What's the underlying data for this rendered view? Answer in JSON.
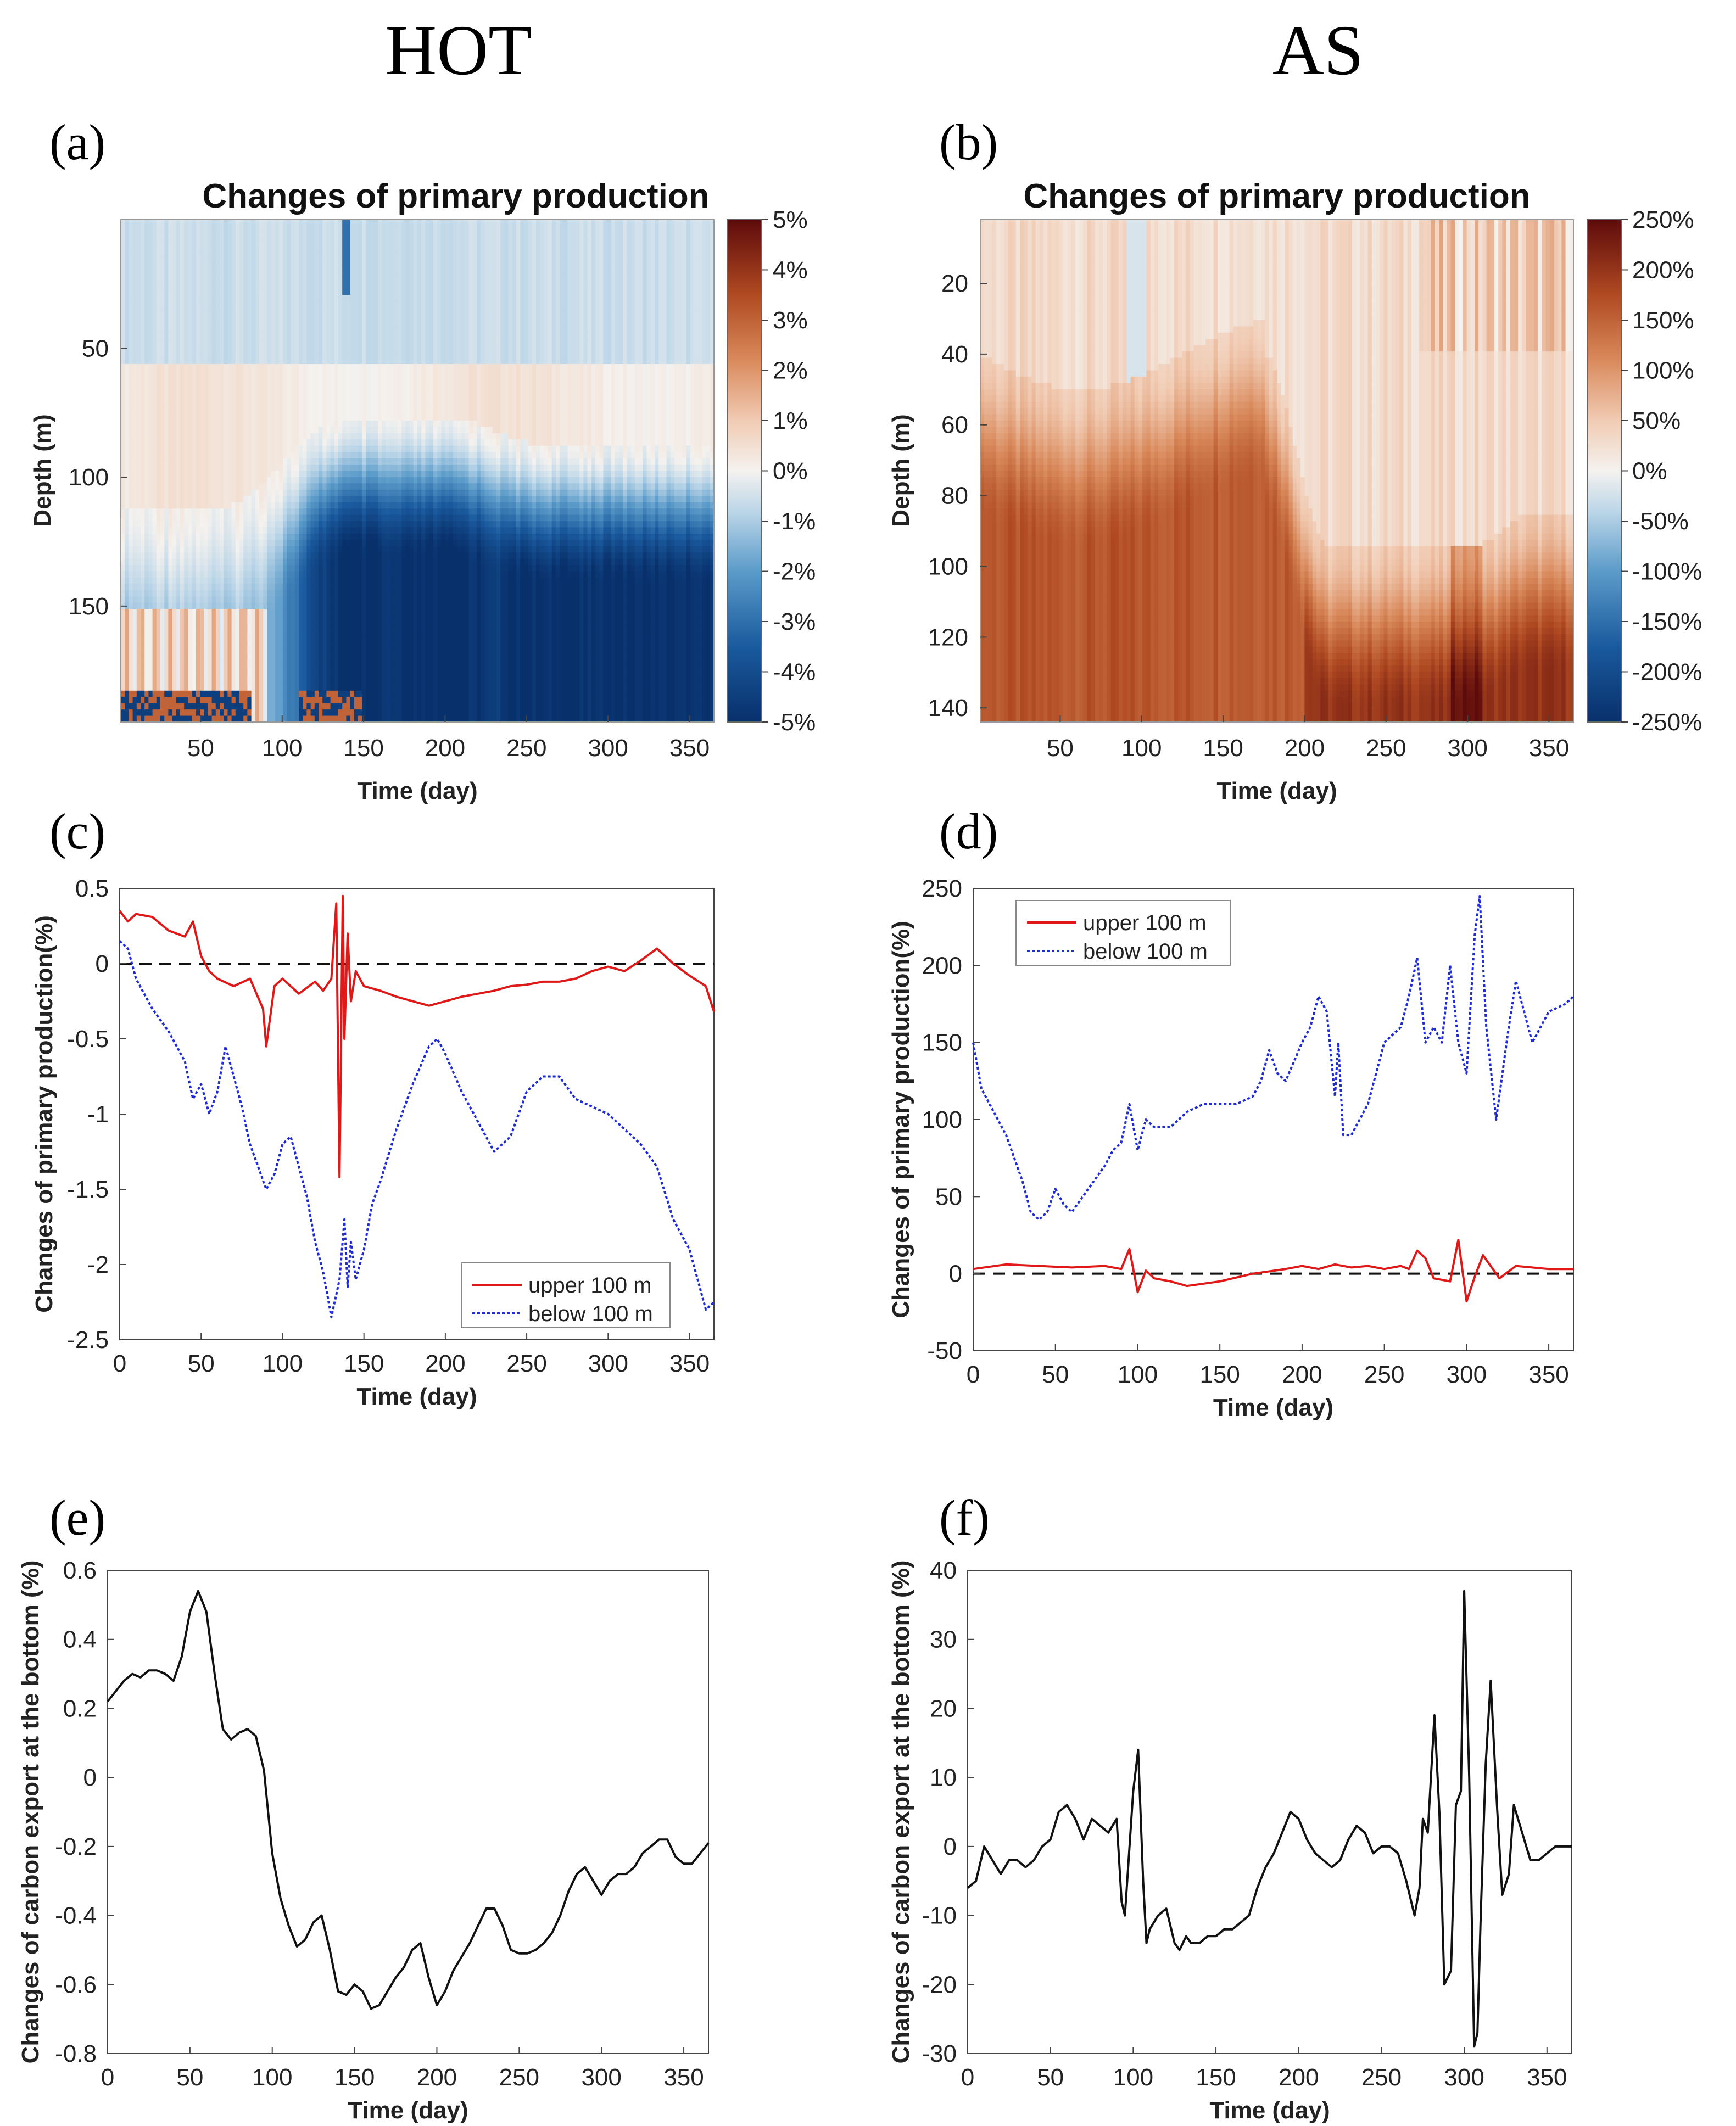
{
  "headers": {
    "left": "HOT",
    "right": "AS"
  },
  "panel_labels": {
    "a": "(a)",
    "b": "(b)",
    "c": "(c)",
    "d": "(d)",
    "e": "(e)",
    "f": "(f)"
  },
  "colors": {
    "red_line": "#e01818",
    "blue_line": "#1f2bd6",
    "black_line": "#111111",
    "neg_end": "#08306b",
    "zero": "#f5f3f1",
    "pos_end": "#6a0b0b"
  },
  "chart_data": [
    {
      "id": "a",
      "type": "heatmap",
      "title": "Changes of primary production",
      "xlabel": "Time (day)",
      "ylabel": "Depth (m)",
      "x_ticks": [
        "50",
        "100",
        "150",
        "200",
        "250",
        "300",
        "350"
      ],
      "y_ticks": [
        "50",
        "100",
        "150"
      ],
      "xlim": [
        1,
        365
      ],
      "ylim": [
        0,
        195
      ],
      "colorbar": {
        "min": -5,
        "max": 5,
        "ticks": [
          "5%",
          "4%",
          "3%",
          "2%",
          "1%",
          "0%",
          "-1%",
          "-2%",
          "-3%",
          "-4%",
          "-5%"
        ],
        "colormap": "blue-white-red"
      }
    },
    {
      "id": "b",
      "type": "heatmap",
      "title": "Changes of primary production",
      "xlabel": "Time (day)",
      "ylabel": "Depth (m)",
      "x_ticks": [
        "50",
        "100",
        "150",
        "200",
        "250",
        "300",
        "350"
      ],
      "y_ticks": [
        "20",
        "40",
        "60",
        "80",
        "100",
        "120",
        "140"
      ],
      "xlim": [
        1,
        365
      ],
      "ylim": [
        2,
        144
      ],
      "colorbar": {
        "min": -250,
        "max": 250,
        "ticks": [
          "250%",
          "200%",
          "150%",
          "100%",
          "50%",
          "0%",
          "-50%",
          "-100%",
          "-150%",
          "-200%",
          "-250%"
        ],
        "colormap": "blue-white-red"
      }
    },
    {
      "id": "c",
      "type": "line",
      "xlabel": "Time (day)",
      "ylabel": "Changes of primary production(%)",
      "xlim": [
        0,
        365
      ],
      "ylim": [
        -2.5,
        0.5
      ],
      "x_ticks": [
        "0",
        "50",
        "100",
        "150",
        "200",
        "250",
        "300",
        "350"
      ],
      "y_ticks": [
        "0.5",
        "0",
        "-0.5",
        "-1",
        "-1.5",
        "-2",
        "-2.5"
      ],
      "legend_position": "bottom-right",
      "series": [
        {
          "name": "upper 100 m",
          "style": "solid",
          "color": "#e01818",
          "x": [
            0,
            5,
            10,
            20,
            30,
            40,
            45,
            50,
            55,
            60,
            70,
            80,
            88,
            90,
            95,
            100,
            110,
            120,
            125,
            130,
            133,
            135,
            137,
            138,
            140,
            142,
            145,
            150,
            160,
            170,
            180,
            190,
            200,
            210,
            220,
            230,
            240,
            250,
            260,
            270,
            280,
            290,
            300,
            310,
            320,
            330,
            340,
            350,
            360,
            365
          ],
          "y": [
            0.35,
            0.28,
            0.33,
            0.31,
            0.22,
            0.18,
            0.28,
            0.05,
            -0.05,
            -0.1,
            -0.15,
            -0.1,
            -0.3,
            -0.55,
            -0.15,
            -0.1,
            -0.2,
            -0.12,
            -0.18,
            -0.1,
            0.4,
            -1.42,
            0.45,
            -0.5,
            0.2,
            -0.25,
            -0.05,
            -0.15,
            -0.18,
            -0.22,
            -0.25,
            -0.28,
            -0.25,
            -0.22,
            -0.2,
            -0.18,
            -0.15,
            -0.14,
            -0.12,
            -0.12,
            -0.1,
            -0.05,
            -0.02,
            -0.05,
            0.02,
            0.1,
            0.0,
            -0.08,
            -0.15,
            -0.32
          ]
        },
        {
          "name": "below 100 m",
          "style": "dotted",
          "color": "#1f2bd6",
          "x": [
            0,
            5,
            10,
            20,
            30,
            40,
            45,
            50,
            55,
            60,
            65,
            70,
            75,
            80,
            90,
            95,
            100,
            105,
            110,
            115,
            120,
            125,
            130,
            135,
            138,
            140,
            142,
            145,
            150,
            155,
            160,
            170,
            180,
            190,
            195,
            200,
            210,
            220,
            230,
            240,
            250,
            260,
            270,
            280,
            290,
            300,
            310,
            320,
            330,
            340,
            350,
            360,
            365
          ],
          "y": [
            0.15,
            0.1,
            -0.1,
            -0.3,
            -0.45,
            -0.65,
            -0.9,
            -0.8,
            -1.0,
            -0.85,
            -0.55,
            -0.75,
            -0.95,
            -1.2,
            -1.5,
            -1.4,
            -1.2,
            -1.15,
            -1.35,
            -1.55,
            -1.85,
            -2.05,
            -2.35,
            -2.1,
            -1.7,
            -2.15,
            -1.85,
            -2.1,
            -1.9,
            -1.6,
            -1.45,
            -1.1,
            -0.8,
            -0.55,
            -0.5,
            -0.6,
            -0.85,
            -1.05,
            -1.25,
            -1.15,
            -0.85,
            -0.75,
            -0.75,
            -0.9,
            -0.95,
            -1.0,
            -1.1,
            -1.2,
            -1.35,
            -1.7,
            -1.9,
            -2.3,
            -2.25
          ]
        }
      ]
    },
    {
      "id": "d",
      "type": "line",
      "xlabel": "Time (day)",
      "ylabel": "Changes of primary production(%)",
      "xlim": [
        0,
        365
      ],
      "ylim": [
        -50,
        250
      ],
      "x_ticks": [
        "0",
        "50",
        "100",
        "150",
        "200",
        "250",
        "300",
        "350"
      ],
      "y_ticks": [
        "250",
        "200",
        "150",
        "100",
        "50",
        "0",
        "-50"
      ],
      "legend_position": "top-left",
      "series": [
        {
          "name": "upper 100 m",
          "style": "solid",
          "color": "#e01818",
          "x": [
            0,
            20,
            40,
            60,
            80,
            90,
            95,
            100,
            105,
            110,
            120,
            130,
            150,
            170,
            190,
            200,
            210,
            220,
            230,
            240,
            250,
            260,
            265,
            270,
            275,
            280,
            290,
            295,
            300,
            305,
            310,
            320,
            330,
            340,
            350,
            365
          ],
          "y": [
            3,
            6,
            5,
            4,
            5,
            3,
            16,
            -12,
            2,
            -3,
            -5,
            -8,
            -5,
            0,
            3,
            5,
            3,
            6,
            4,
            5,
            3,
            5,
            3,
            15,
            10,
            -3,
            -5,
            22,
            -18,
            -2,
            12,
            -3,
            5,
            4,
            3,
            3
          ]
        },
        {
          "name": "below 100 m",
          "style": "dotted",
          "color": "#1f2bd6",
          "x": [
            0,
            5,
            10,
            20,
            30,
            35,
            40,
            45,
            50,
            55,
            60,
            70,
            80,
            85,
            90,
            95,
            100,
            105,
            110,
            120,
            130,
            140,
            150,
            160,
            170,
            175,
            180,
            185,
            190,
            200,
            205,
            210,
            215,
            220,
            222,
            225,
            230,
            240,
            250,
            260,
            265,
            270,
            275,
            280,
            285,
            290,
            295,
            300,
            305,
            308,
            312,
            318,
            325,
            330,
            340,
            350,
            360,
            365
          ],
          "y": [
            150,
            120,
            110,
            90,
            60,
            40,
            35,
            40,
            55,
            45,
            40,
            55,
            70,
            80,
            85,
            110,
            80,
            100,
            95,
            95,
            105,
            110,
            110,
            110,
            115,
            125,
            145,
            130,
            125,
            150,
            160,
            180,
            170,
            115,
            150,
            90,
            90,
            110,
            150,
            160,
            180,
            205,
            150,
            160,
            150,
            200,
            150,
            130,
            220,
            245,
            160,
            100,
            155,
            190,
            150,
            170,
            175,
            180
          ]
        }
      ]
    },
    {
      "id": "e",
      "type": "line",
      "xlabel": "Time (day)",
      "ylabel": "Changes of carbon export at the bottom (%)",
      "xlim": [
        0,
        365
      ],
      "ylim": [
        -0.8,
        0.6
      ],
      "x_ticks": [
        "0",
        "50",
        "100",
        "150",
        "200",
        "250",
        "300",
        "350"
      ],
      "y_ticks": [
        "0.6",
        "0.4",
        "0.2",
        "0",
        "-0.2",
        "-0.4",
        "-0.6",
        "-0.8"
      ],
      "series": [
        {
          "name": "",
          "style": "solid",
          "color": "#111111",
          "x": [
            0,
            5,
            10,
            15,
            20,
            25,
            30,
            35,
            40,
            45,
            50,
            55,
            60,
            65,
            70,
            75,
            80,
            85,
            90,
            95,
            100,
            105,
            110,
            115,
            120,
            125,
            130,
            135,
            140,
            145,
            150,
            155,
            160,
            165,
            170,
            175,
            180,
            185,
            190,
            195,
            200,
            205,
            210,
            215,
            220,
            225,
            230,
            235,
            240,
            245,
            250,
            255,
            260,
            265,
            270,
            275,
            280,
            285,
            290,
            295,
            300,
            305,
            310,
            315,
            320,
            325,
            330,
            335,
            340,
            345,
            350,
            355,
            360,
            365
          ],
          "y": [
            0.22,
            0.25,
            0.28,
            0.3,
            0.29,
            0.31,
            0.31,
            0.3,
            0.28,
            0.35,
            0.48,
            0.54,
            0.48,
            0.3,
            0.14,
            0.11,
            0.13,
            0.14,
            0.12,
            0.02,
            -0.22,
            -0.35,
            -0.43,
            -0.49,
            -0.47,
            -0.42,
            -0.4,
            -0.5,
            -0.62,
            -0.63,
            -0.6,
            -0.62,
            -0.67,
            -0.66,
            -0.62,
            -0.58,
            -0.55,
            -0.5,
            -0.48,
            -0.58,
            -0.66,
            -0.62,
            -0.56,
            -0.52,
            -0.48,
            -0.43,
            -0.38,
            -0.38,
            -0.43,
            -0.5,
            -0.51,
            -0.51,
            -0.5,
            -0.48,
            -0.45,
            -0.4,
            -0.33,
            -0.28,
            -0.26,
            -0.3,
            -0.34,
            -0.3,
            -0.28,
            -0.28,
            -0.26,
            -0.22,
            -0.2,
            -0.18,
            -0.18,
            -0.23,
            -0.25,
            -0.25,
            -0.22,
            -0.19
          ]
        }
      ]
    },
    {
      "id": "f",
      "type": "line",
      "xlabel": "Time (day)",
      "ylabel": "Changes of carbon export at the bottom (%)",
      "xlim": [
        0,
        365
      ],
      "ylim": [
        -30,
        40
      ],
      "x_ticks": [
        "0",
        "50",
        "100",
        "150",
        "200",
        "250",
        "300",
        "350"
      ],
      "y_ticks": [
        "40",
        "30",
        "20",
        "10",
        "0",
        "-10",
        "-20",
        "-30"
      ],
      "series": [
        {
          "name": "",
          "style": "solid",
          "color": "#111111",
          "x": [
            0,
            5,
            10,
            15,
            20,
            25,
            30,
            35,
            40,
            45,
            50,
            55,
            60,
            65,
            70,
            75,
            80,
            85,
            90,
            93,
            95,
            100,
            103,
            106,
            108,
            110,
            115,
            120,
            125,
            128,
            130,
            132,
            135,
            140,
            145,
            150,
            155,
            160,
            165,
            170,
            175,
            180,
            185,
            190,
            195,
            200,
            205,
            210,
            215,
            220,
            225,
            230,
            235,
            240,
            245,
            250,
            255,
            260,
            265,
            270,
            273,
            275,
            278,
            282,
            285,
            288,
            292,
            295,
            298,
            300,
            303,
            306,
            308,
            310,
            313,
            316,
            320,
            323,
            327,
            330,
            335,
            340,
            345,
            350,
            355,
            360,
            365
          ],
          "y": [
            -6,
            -5,
            0,
            -2,
            -4,
            -2,
            -2,
            -3,
            -2,
            0,
            1,
            5,
            6,
            4,
            1,
            4,
            3,
            2,
            4,
            -8,
            -10,
            8,
            14,
            -5,
            -14,
            -12,
            -10,
            -9,
            -14,
            -15,
            -14,
            -13,
            -14,
            -14,
            -13,
            -13,
            -12,
            -12,
            -11,
            -10,
            -6,
            -3,
            -1,
            2,
            5,
            4,
            1,
            -1,
            -2,
            -3,
            -2,
            1,
            3,
            2,
            -1,
            0,
            0,
            -1,
            -5,
            -10,
            -6,
            4,
            2,
            19,
            5,
            -20,
            -18,
            6,
            8,
            37,
            10,
            -29,
            -27,
            -10,
            12,
            24,
            5,
            -7,
            -4,
            6,
            2,
            -2,
            -2,
            -1,
            0,
            0,
            0
          ]
        }
      ]
    }
  ]
}
